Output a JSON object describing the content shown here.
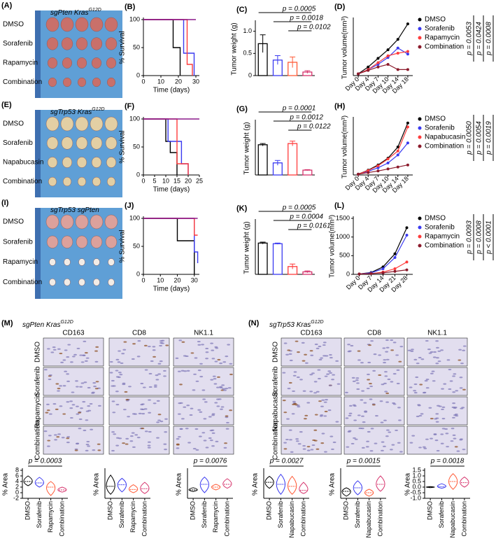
{
  "panels": {
    "photos": [
      {
        "label": "(A)",
        "title": "sgPten Kras",
        "title_sup": "G12D",
        "rows": [
          "DMSO",
          "Sorafenib",
          "Rapamycin",
          "Combination"
        ]
      },
      {
        "label": "(E)",
        "title": "sgTrp53 Kras",
        "title_sup": "G12D",
        "rows": [
          "DMSO",
          "Sorafenib",
          "Napabucasin",
          "Combination"
        ]
      },
      {
        "label": "(I)",
        "title": "sgTrp53 sgPten",
        "rows": [
          "DMSO",
          "Sorafenib",
          "Rapamycin",
          "Combination"
        ]
      }
    ],
    "ihc": [
      {
        "label": "(M)",
        "title": "sgPten Kras",
        "title_sup": "G12D",
        "columns": [
          "CD163",
          "CD8",
          "NK1.1"
        ],
        "rows": [
          "DMSO",
          "Sorafenib",
          "Rapamycin",
          "Combination"
        ]
      },
      {
        "label": "(N)",
        "title": "sgTrp53 Kras",
        "title_sup": "G12D",
        "columns": [
          "CD163",
          "CD8",
          "NK1.1"
        ],
        "rows": [
          "DMSO",
          "Sorafenib",
          "Napabucasin",
          "Combination"
        ]
      }
    ]
  },
  "chart_data": [
    {
      "label": "(B)",
      "type": "line",
      "step": true,
      "xlabel": "Time (days)",
      "ylabel": "% Survival",
      "xlim": [
        0,
        32
      ],
      "xticks": [
        0,
        10,
        20,
        30
      ],
      "ylim": [
        0,
        100
      ],
      "yticks": [
        0,
        50,
        100
      ],
      "series": [
        {
          "color": "#000000",
          "x": [
            0,
            17,
            21
          ],
          "values": [
            100,
            50,
            0
          ]
        },
        {
          "color": "#3a3af0",
          "x": [
            0,
            23,
            29
          ],
          "values": [
            100,
            40,
            0
          ]
        },
        {
          "color": "#ff3b3b",
          "x": [
            0,
            25,
            28
          ],
          "values": [
            100,
            20,
            0
          ]
        },
        {
          "color": "#8b1a8b",
          "x": [
            0,
            30
          ],
          "values": [
            100,
            100
          ]
        }
      ]
    },
    {
      "label": "(C)",
      "type": "bar",
      "ylabel": "Tumor weight (g)",
      "categories": [
        null,
        null,
        null,
        null
      ],
      "values": [
        0.72,
        0.35,
        0.3,
        0.08
      ],
      "errors": [
        0.2,
        0.1,
        0.12,
        0.03
      ],
      "colors": [
        "#000000",
        "#3a3af0",
        "#ff5a36",
        "#d6336c"
      ],
      "ylim": [
        0,
        1.2
      ],
      "yticks": [
        0,
        0.5,
        {
          "value": 1,
          "label": "1.0"
        }
      ],
      "annotations": [
        "p = 0.0005",
        "p = 0.0018",
        "p = 0.0102"
      ]
    },
    {
      "label": "(D)",
      "type": "line",
      "ylabel": "Tumor volume(mm³)",
      "categories": [
        "Day 0",
        "Day 4",
        "Day 7",
        "Day 10",
        "Day 14",
        "Day 18"
      ],
      "ylim": [
        0,
        650
      ],
      "series": [
        {
          "name": "DMSO",
          "color": "#000000",
          "values": [
            20,
            100,
            200,
            300,
            420,
            600
          ]
        },
        {
          "name": "Sorafenib",
          "color": "#3a3af0",
          "values": [
            20,
            70,
            130,
            210,
            320,
            250
          ]
        },
        {
          "name": "Rapamycin",
          "color": "#ff3b3b",
          "values": [
            20,
            70,
            150,
            230,
            260,
            280
          ]
        },
        {
          "name": "Combination",
          "color": "#8b1a2b",
          "values": [
            20,
            60,
            100,
            130,
            70,
            70
          ]
        }
      ],
      "annotations": [
        "p = 0.0053",
        "p = 0.0424",
        "p = 0.0008"
      ]
    },
    {
      "label": "(F)",
      "type": "line",
      "step": true,
      "xlabel": "Time (days)",
      "ylabel": "% Survival",
      "xlim": [
        0,
        25
      ],
      "xticks": [
        0,
        5,
        10,
        15,
        20,
        25
      ],
      "ylim": [
        0,
        100
      ],
      "yticks": [
        0,
        50,
        100
      ],
      "series": [
        {
          "color": "#000000",
          "x": [
            0,
            10,
            12,
            15
          ],
          "values": [
            100,
            60,
            40,
            0
          ]
        },
        {
          "color": "#3a3af0",
          "x": [
            0,
            11,
            17,
            20
          ],
          "values": [
            100,
            60,
            20,
            0
          ]
        },
        {
          "color": "#ff3b3b",
          "x": [
            0,
            15,
            20
          ],
          "values": [
            100,
            20,
            0
          ]
        },
        {
          "color": "#8b1a8b",
          "x": [
            0,
            25
          ],
          "values": [
            100,
            100
          ]
        }
      ]
    },
    {
      "label": "(G)",
      "type": "bar",
      "ylabel": "Tumor weight (g)",
      "categories": [
        null,
        null,
        null,
        null
      ],
      "values": [
        1.25,
        0.5,
        1.3,
        0.2
      ],
      "errors": [
        0.05,
        0.1,
        0.1,
        0.02
      ],
      "colors": [
        "#000000",
        "#3a3af0",
        "#ff3b3b",
        "#d6336c"
      ],
      "ylim": [
        0,
        2.2
      ],
      "annotations": [
        "p = 0.0001",
        "p = 0.0012",
        "p = 0.0122"
      ]
    },
    {
      "label": "(H)",
      "type": "line",
      "ylabel": "Tumor volume(mm³)",
      "categories": [
        "Day 0",
        "Day 4",
        "Day 7",
        "Day 10",
        "Day 14",
        "Day 18"
      ],
      "ylim": [
        0,
        1400
      ],
      "series": [
        {
          "name": "DMSO",
          "color": "#000000",
          "values": [
            20,
            120,
            250,
            420,
            700,
            1300
          ]
        },
        {
          "name": "Sorafenib",
          "color": "#3a3af0",
          "values": [
            20,
            90,
            180,
            300,
            500,
            800
          ]
        },
        {
          "name": "Napabucasin",
          "color": "#ff3b3b",
          "values": [
            20,
            110,
            230,
            400,
            600,
            1200
          ]
        },
        {
          "name": "Combination",
          "color": "#8b1a2b",
          "values": [
            20,
            60,
            100,
            150,
            200,
            250
          ]
        }
      ],
      "annotations": [
        "p = 0.0050",
        "p = 0.0054",
        "p = 0.0019"
      ]
    },
    {
      "label": "(J)",
      "type": "line",
      "step": true,
      "xlabel": "Time (days)",
      "ylabel": "% Survival",
      "xlim": [
        0,
        33
      ],
      "xticks": [
        0,
        10,
        20,
        30
      ],
      "ylim": [
        0,
        100
      ],
      "yticks": [
        0,
        50,
        100
      ],
      "series": [
        {
          "color": "#000000",
          "x": [
            0,
            20,
            30
          ],
          "values": [
            100,
            60,
            0
          ]
        },
        {
          "color": "#3a3af0",
          "x": [
            0,
            30,
            32
          ],
          "values": [
            100,
            40,
            20
          ]
        },
        {
          "color": "#ff3b3b",
          "x": [
            0,
            30,
            32
          ],
          "values": [
            100,
            70,
            70
          ]
        },
        {
          "color": "#8b1a8b",
          "x": [
            0,
            32
          ],
          "values": [
            100,
            100
          ]
        }
      ]
    },
    {
      "label": "(K)",
      "type": "bar",
      "ylabel": "Tumor weight (g)",
      "categories": [
        null,
        null,
        null,
        null
      ],
      "values": [
        1.0,
        0.98,
        0.25,
        0.08
      ],
      "errors": [
        0.03,
        0.02,
        0.08,
        0.03
      ],
      "colors": [
        "#000000",
        "#3a3af0",
        "#ff3b3b",
        "#d6336c"
      ],
      "ylim": [
        0,
        1.7
      ],
      "annotations": [
        "p = 0.0005",
        "p = 0.0004",
        "p = 0.0161"
      ]
    },
    {
      "label": "(L)",
      "type": "line",
      "ylabel": "Tumor volume(mm³)",
      "categories": [
        "Day 0",
        "Day 7",
        "Day 14",
        "Day 21",
        "Day 28"
      ],
      "ylim": [
        0,
        1500
      ],
      "yticks": [
        0,
        500,
        1000,
        1500
      ],
      "series": [
        {
          "name": "DMSO",
          "color": "#000000",
          "values": [
            10,
            50,
            200,
            550,
            1250
          ]
        },
        {
          "name": "Sorafenib",
          "color": "#3a3af0",
          "values": [
            10,
            40,
            150,
            450,
            1050
          ]
        },
        {
          "name": "Rapamycin",
          "color": "#ff3b3b",
          "values": [
            10,
            20,
            60,
            150,
            330
          ]
        },
        {
          "name": "Combination",
          "color": "#8b1a2b",
          "values": [
            10,
            20,
            40,
            80,
            120
          ]
        }
      ],
      "annotations": [
        "p = 0.0093",
        "p = 0.0008",
        "p < 0.0001"
      ]
    },
    {
      "type": "violin",
      "ylabel": "% Area",
      "categories": [
        "DMSO",
        "Sorafenib",
        "Rapamycin",
        "Combination"
      ],
      "values": [
        4,
        3.5,
        2,
        1
      ],
      "low": [
        2.5,
        2,
        -1,
        0.2
      ],
      "high": [
        6,
        5.5,
        4,
        2
      ],
      "colors": [
        "#000000",
        "#3a3af0",
        "#ff5a36",
        "#d6336c"
      ],
      "ylim": [
        -2,
        8
      ],
      "yticks": [
        -2,
        0,
        2,
        4,
        6,
        8
      ],
      "annotations": [
        "p = 0.0003"
      ]
    },
    {
      "type": "violin",
      "ylabel": "% Area",
      "categories": [
        "DMSO",
        "Sorafenib",
        "Rapamycin",
        "Combination"
      ],
      "values": [
        1,
        1.2,
        0.6,
        0.7
      ],
      "low": [
        0,
        0.3,
        0.2,
        0.1
      ],
      "high": [
        2.4,
        2,
        1.2,
        1.5
      ],
      "colors": [
        "#000000",
        "#3a3af0",
        "#ff5a36",
        "#d6336c"
      ],
      "ylim": [
        -0.5,
        3
      ]
    },
    {
      "type": "violin",
      "ylabel": "% Area",
      "categories": [
        "DMSO",
        "Sorafenib",
        "Rapamycin",
        "Combination"
      ],
      "values": [
        0.5,
        1.5,
        1,
        1.5
      ],
      "low": [
        0.2,
        0,
        0.5,
        0.8
      ],
      "high": [
        0.9,
        2.8,
        1.5,
        2.5
      ],
      "colors": [
        "#000000",
        "#3a3af0",
        "#ff5a36",
        "#d6336c"
      ],
      "ylim": [
        -1,
        4
      ],
      "annotations": [
        "p = 0.0076"
      ]
    },
    {
      "type": "violin",
      "ylabel": "% Area",
      "categories": [
        "DMSO",
        "Sorafenib",
        "Napabucasin",
        "Combination"
      ],
      "values": [
        3,
        2.5,
        2,
        1
      ],
      "low": [
        1.5,
        0,
        0,
        0.2
      ],
      "high": [
        4.5,
        5,
        4.5,
        3
      ],
      "colors": [
        "#000000",
        "#3a3af0",
        "#ff5a36",
        "#d6336c"
      ],
      "ylim": [
        -1,
        6
      ],
      "annotations": [
        "p = 0.0027"
      ]
    },
    {
      "type": "violin",
      "ylabel": "% Area",
      "categories": [
        "DMSO",
        "Sorafenib",
        "Napabucasin",
        "Combination"
      ],
      "values": [
        1,
        1.5,
        0.8,
        2
      ],
      "low": [
        0.3,
        0.5,
        0.3,
        1
      ],
      "high": [
        1.5,
        2.5,
        1.3,
        3.2
      ],
      "colors": [
        "#000000",
        "#3a3af0",
        "#ff5a36",
        "#d6336c"
      ],
      "ylim": [
        0,
        4
      ],
      "annotations": [
        "p = 0.0015"
      ]
    },
    {
      "type": "violin",
      "ylabel": "% Area",
      "categories": [
        "DMSO",
        "Sorafenib",
        "Napabucasin",
        "Combination"
      ],
      "values": [
        0,
        0.05,
        0.5,
        0.4
      ],
      "low": [
        -0.05,
        -0.1,
        -0.2,
        0
      ],
      "high": [
        0.05,
        0.3,
        1.2,
        0.9
      ],
      "colors": [
        "#000000",
        "#3a3af0",
        "#ff5a36",
        "#d6336c"
      ],
      "ylim": [
        -1,
        1.5
      ],
      "yticks": [
        {
          "value": -1,
          "label": "-1.0"
        },
        {
          "value": -0.5,
          "label": "-0.5"
        },
        {
          "value": 0,
          "label": "0.0"
        },
        {
          "value": 0.5,
          "label": "0.5"
        },
        {
          "value": 1,
          "label": "1.0"
        },
        {
          "value": 1.5,
          "label": "1.5"
        }
      ],
      "annotations": [
        "p = 0.0018"
      ]
    }
  ]
}
